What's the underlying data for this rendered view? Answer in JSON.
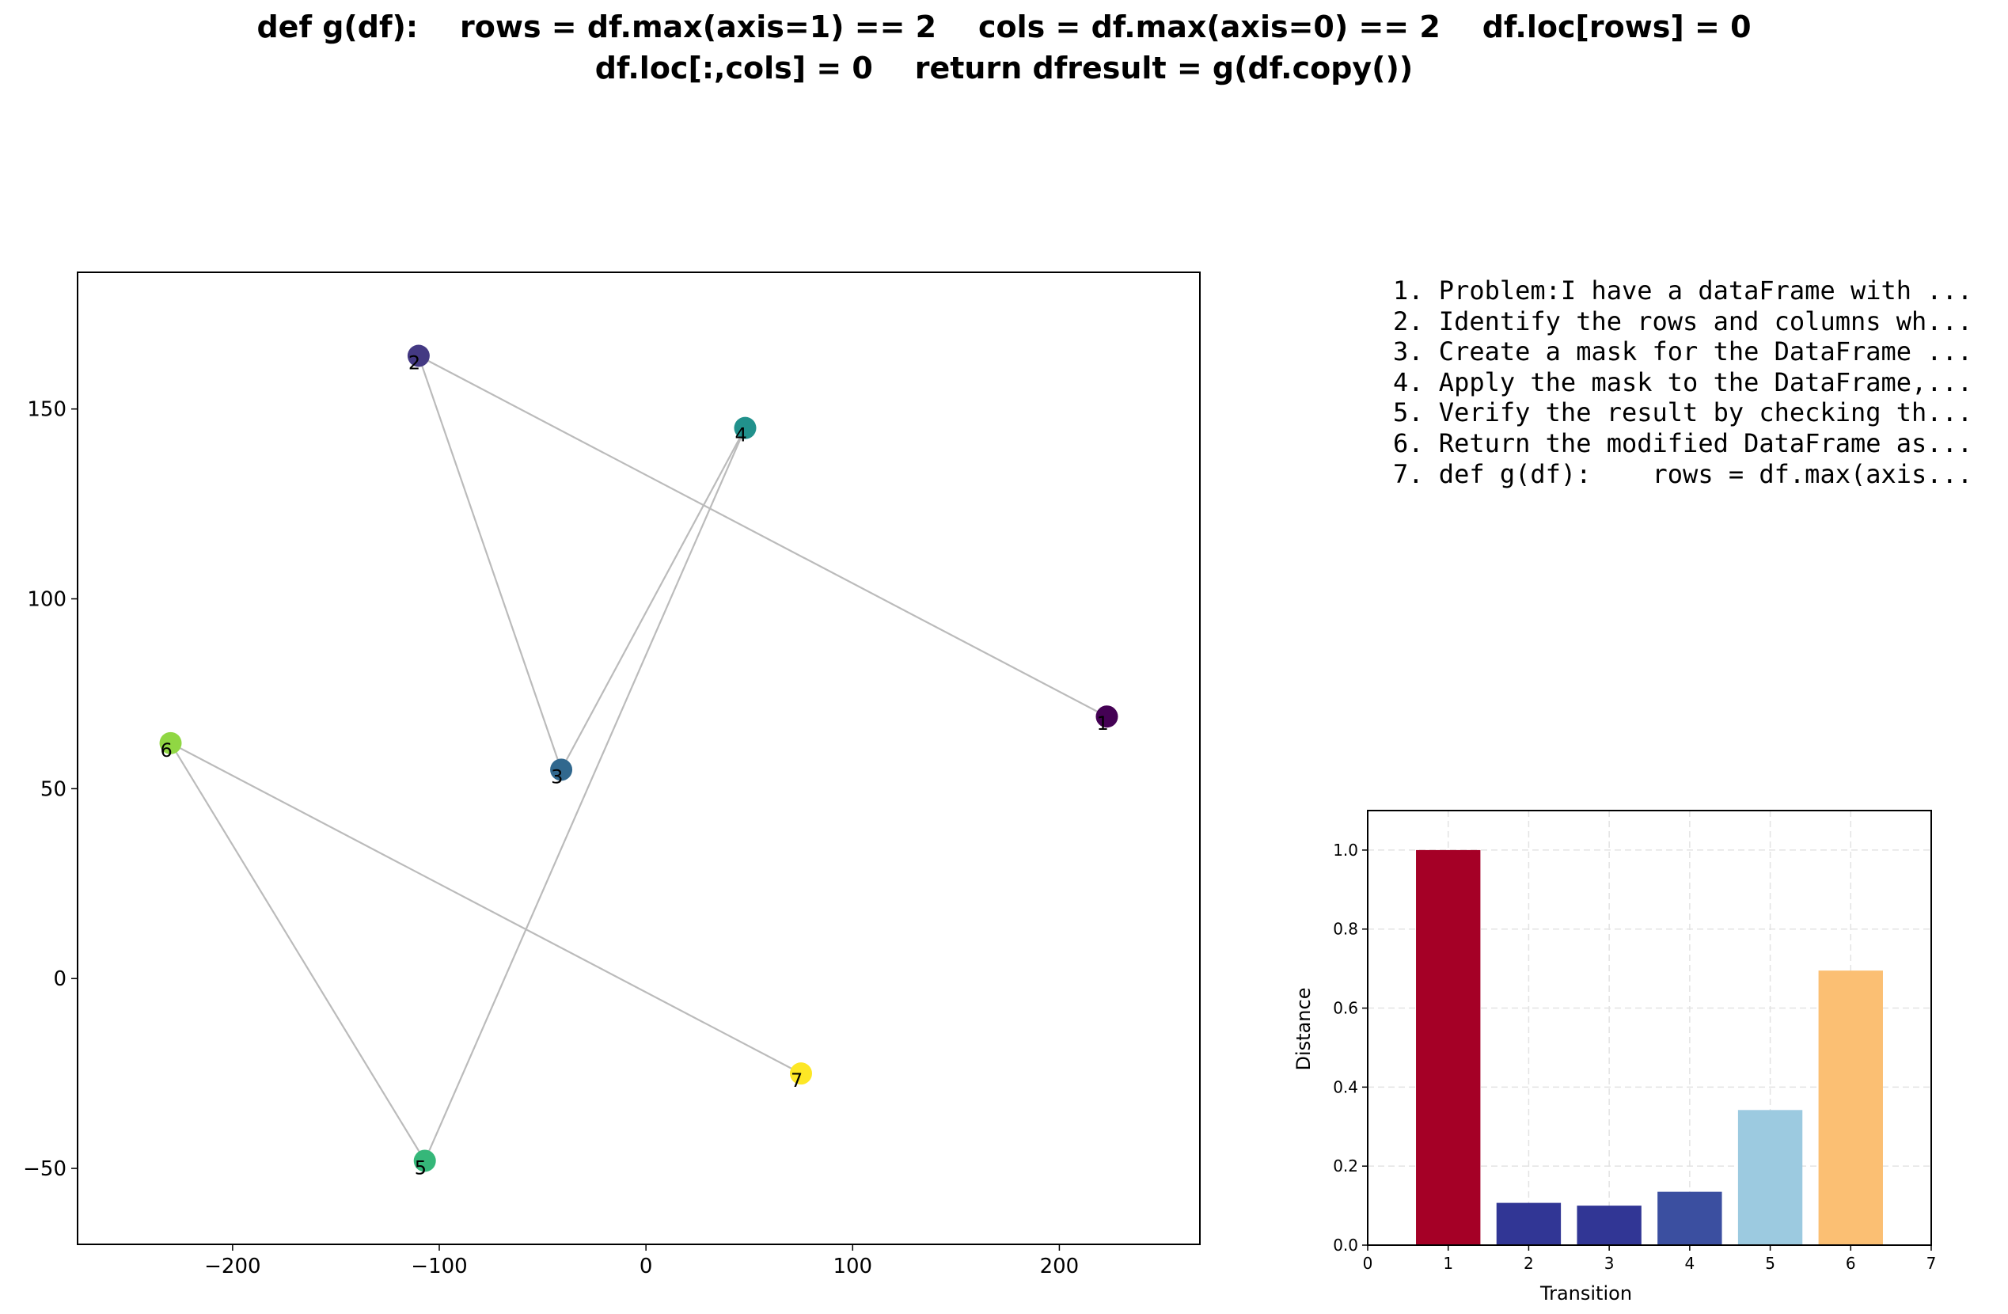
{
  "title_lines": [
    "def g(df):    rows = df.max(axis=1) == 2    cols = df.max(axis=0) == 2    df.loc[rows] = 0",
    "df.loc[:,cols] = 0    return dfresult = g(df.copy())"
  ],
  "steps": [
    "1. Problem:I have a dataFrame with ...",
    "2. Identify the rows and columns wh...",
    "3. Create a mask for the DataFrame ...",
    "4. Apply the mask to the DataFrame,...",
    "5. Verify the result by checking th...",
    "6. Return the modified DataFrame as...",
    "7. def g(df):    rows = df.max(axis..."
  ],
  "chart_data": [
    {
      "type": "scatter",
      "xlim": [
        -275,
        268
      ],
      "ylim": [
        -70,
        186
      ],
      "xticks": [
        -200,
        -100,
        0,
        100,
        200
      ],
      "yticks": [
        -50,
        0,
        50,
        100,
        150
      ],
      "grid": false,
      "points": [
        {
          "label": "1",
          "x": 223,
          "y": 69,
          "color": "#440154"
        },
        {
          "label": "2",
          "x": -110,
          "y": 164,
          "color": "#443983"
        },
        {
          "label": "3",
          "x": -41,
          "y": 55,
          "color": "#31688e"
        },
        {
          "label": "4",
          "x": 48,
          "y": 145,
          "color": "#21918c"
        },
        {
          "label": "5",
          "x": -107,
          "y": -48,
          "color": "#35b779"
        },
        {
          "label": "6",
          "x": -230,
          "y": 62,
          "color": "#90d743"
        },
        {
          "label": "7",
          "x": 75,
          "y": -25,
          "color": "#fde725"
        }
      ],
      "path_order": [
        "1",
        "2",
        "3",
        "4",
        "5",
        "6",
        "7"
      ],
      "line_color": "#bbbbbb"
    },
    {
      "type": "bar",
      "xlabel": "Transition",
      "ylabel": "Distance",
      "categories": [
        1,
        2,
        3,
        4,
        5,
        6
      ],
      "values": [
        1.0,
        0.107,
        0.1,
        0.135,
        0.342,
        0.695
      ],
      "colors": [
        "#a50026",
        "#313695",
        "#313695",
        "#3b4fa0",
        "#9ccae0",
        "#fbbf73"
      ],
      "xlim": [
        0,
        7
      ],
      "ylim": [
        0,
        1.1
      ],
      "xticks": [
        0,
        1,
        2,
        3,
        4,
        5,
        6,
        7
      ],
      "yticks": [
        0.0,
        0.2,
        0.4,
        0.6,
        0.8,
        1.0
      ],
      "grid": true
    }
  ]
}
